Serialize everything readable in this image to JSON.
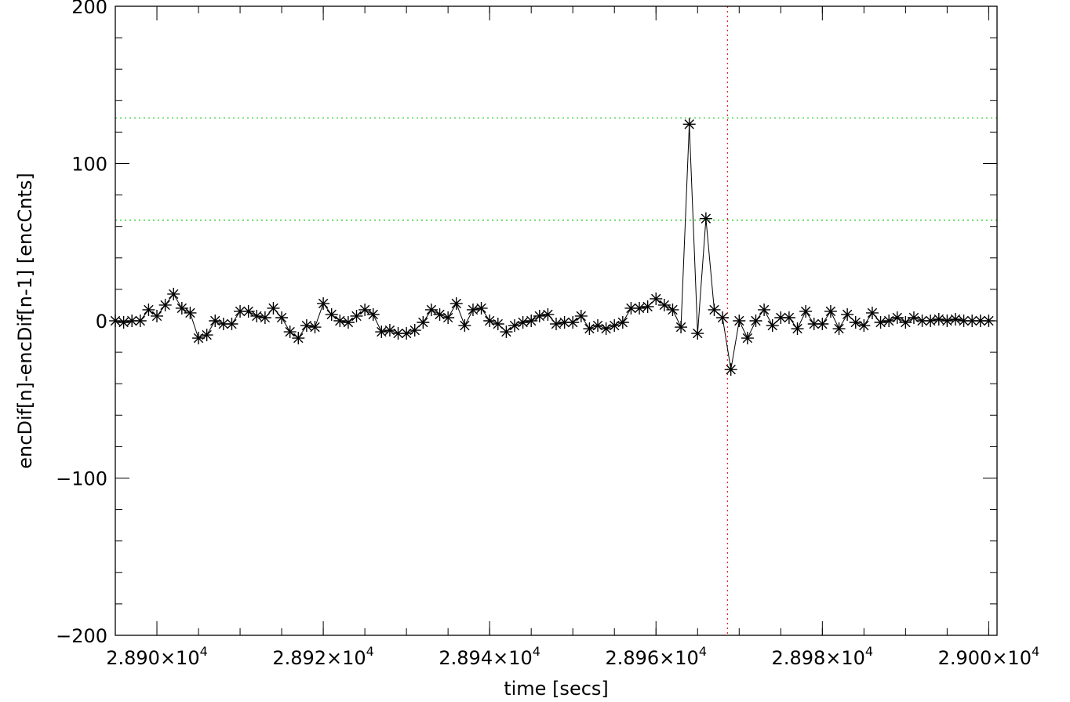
{
  "chart_data": {
    "type": "scatter",
    "title": "",
    "xlabel": "time [secs]",
    "ylabel": "encDif[n]-encDif[n-1] [encCnts]",
    "xlim": [
      28895,
      29001
    ],
    "ylim": [
      -200,
      200
    ],
    "x_ticks": [
      {
        "value": 28900,
        "mantissa": "2.890",
        "exponent": "4"
      },
      {
        "value": 28920,
        "mantissa": "2.892",
        "exponent": "4"
      },
      {
        "value": 28940,
        "mantissa": "2.894",
        "exponent": "4"
      },
      {
        "value": 28960,
        "mantissa": "2.896",
        "exponent": "4"
      },
      {
        "value": 28980,
        "mantissa": "2.898",
        "exponent": "4"
      },
      {
        "value": 29000,
        "mantissa": "2.900",
        "exponent": "4"
      }
    ],
    "x_minor_step": 5,
    "y_ticks": [
      {
        "value": 200,
        "label": "200"
      },
      {
        "value": 100,
        "label": "100"
      },
      {
        "value": 0,
        "label": "0"
      },
      {
        "value": -100,
        "label": "−100"
      },
      {
        "value": -200,
        "label": "−200"
      }
    ],
    "y_minor_step": 20,
    "grid": false,
    "marker": "asterisk",
    "connect_points": true,
    "line_color": "#000000",
    "reference_lines": [
      {
        "orientation": "horizontal",
        "value": 129,
        "color": "#22cc22",
        "style": "dotted"
      },
      {
        "orientation": "horizontal",
        "value": 64,
        "color": "#22cc22",
        "style": "dotted"
      },
      {
        "orientation": "vertical",
        "value": 28968.6,
        "color": "#ee2222",
        "style": "dotted"
      }
    ],
    "series": [
      {
        "x": [
          28895.0,
          28896.0,
          28897.0,
          28898.0,
          28899.0,
          28900.0,
          28901.0,
          28902.0,
          28903.0,
          28904.0,
          28905.0,
          28906.0,
          28907.0,
          28908.0,
          28909.0,
          28910.0,
          28911.0,
          28912.0,
          28913.0,
          28914.0,
          28915.0,
          28916.0,
          28917.0,
          28918.0,
          28919.0,
          28920.0,
          28921.0,
          28922.0,
          28923.0,
          28924.0,
          28925.0,
          28926.0,
          28927.0,
          28928.0,
          28929.0,
          28930.0,
          28931.0,
          28932.0,
          28933.0,
          28934.0,
          28935.0,
          28936.0,
          28937.0,
          28938.0,
          28939.0,
          28940.0,
          28941.0,
          28942.0,
          28943.0,
          28944.0,
          28945.0,
          28946.0,
          28947.0,
          28948.0,
          28949.0,
          28950.0,
          28951.0,
          28952.0,
          28953.0,
          28954.0,
          28955.0,
          28956.0,
          28957.0,
          28958.0,
          28959.0,
          28960.0,
          28961.0,
          28962.0,
          28963.0,
          28964.0,
          28965.0,
          28966.0,
          28967.0,
          28968.0,
          28969.0,
          28970.0,
          28971.0,
          28972.0,
          28973.0,
          28974.0,
          28975.0,
          28976.0,
          28977.0,
          28978.0,
          28979.0,
          28980.0,
          28981.0,
          28982.0,
          28983.0,
          28984.0,
          28985.0,
          28986.0,
          28987.0,
          28988.0,
          28989.0,
          28990.0,
          28991.0,
          28992.0,
          28993.0,
          28994.0,
          28995.0,
          28996.0,
          28997.0,
          28998.0,
          28999.0,
          29000.0
        ],
        "y": [
          0,
          -1,
          0,
          0,
          7,
          3,
          10,
          17,
          8,
          5,
          -11,
          -9,
          0,
          -2,
          -2,
          6,
          6,
          3,
          2,
          8,
          2,
          -7,
          -11,
          -3,
          -4,
          11,
          4,
          0,
          -1,
          3,
          7,
          4,
          -7,
          -6,
          -8,
          -8,
          -6,
          -1,
          7,
          4,
          2,
          11,
          -3,
          7,
          8,
          0,
          -2,
          -7,
          -3,
          -1,
          0,
          3,
          4,
          -2,
          -1,
          -1,
          3,
          -5,
          -3,
          -5,
          -3,
          -1,
          8,
          8,
          9,
          14,
          10,
          7,
          -4,
          125,
          -8,
          65,
          7,
          2,
          -31,
          0,
          -11,
          0,
          7,
          -3,
          2,
          2,
          -5,
          6,
          -2,
          -2,
          6,
          -5,
          4,
          -1,
          -3,
          5,
          -1,
          0,
          2,
          -1,
          2,
          0,
          0,
          1,
          0,
          1,
          0,
          0,
          0,
          0
        ]
      }
    ]
  }
}
